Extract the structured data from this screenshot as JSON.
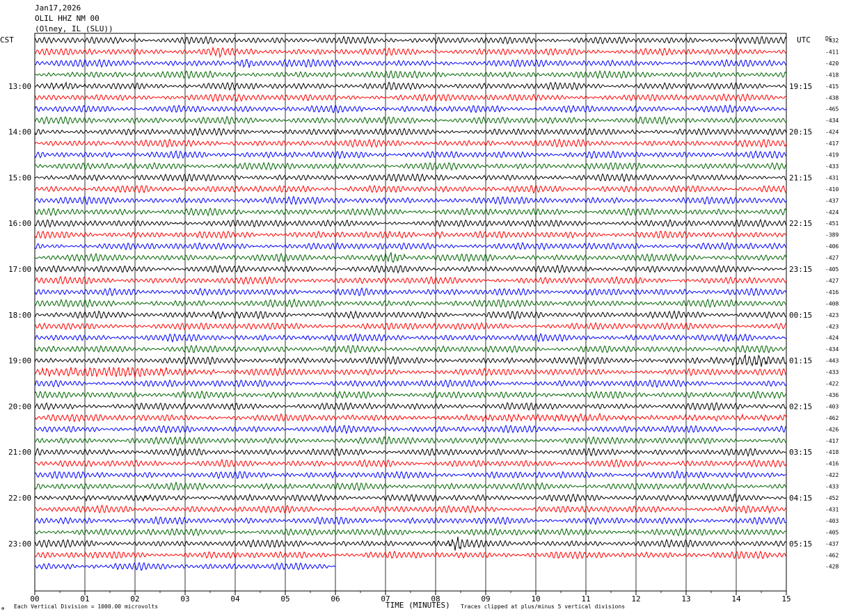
{
  "header": {
    "date": "Jan17,2026",
    "station": "OLIL HHZ NM 00",
    "location": "(Olney, IL (SLU))"
  },
  "left_zone_label": "CST",
  "right_zone_label": "UTC",
  "dc_label": "DC",
  "footer": {
    "scale_note": "Each Vertical Division = 1000.00 microvolts",
    "xlabel": "TIME (MINUTES)",
    "clip_note": "Traces clipped at plus/minus 5 vertical divisions",
    "corner_mark": "✠"
  },
  "chart_data": {
    "type": "line",
    "x_ticks": [
      "00",
      "01",
      "02",
      "03",
      "04",
      "05",
      "06",
      "07",
      "08",
      "09",
      "10",
      "11",
      "12",
      "13",
      "14",
      "15"
    ],
    "xlim": [
      0,
      15
    ],
    "grid": true,
    "trace_colors": [
      "#000000",
      "#ff0000",
      "#0000ff",
      "#006400"
    ],
    "rows": [
      {
        "dc": "-432",
        "local": "",
        "utc": ""
      },
      {
        "dc": "-411",
        "local": "",
        "utc": ""
      },
      {
        "dc": "-420",
        "local": "",
        "utc": ""
      },
      {
        "dc": "-418",
        "local": "",
        "utc": ""
      },
      {
        "dc": "-415",
        "local": "13:00",
        "utc": "19:15"
      },
      {
        "dc": "-438",
        "local": "",
        "utc": ""
      },
      {
        "dc": "-465",
        "local": "",
        "utc": ""
      },
      {
        "dc": "-434",
        "local": "",
        "utc": ""
      },
      {
        "dc": "-424",
        "local": "14:00",
        "utc": "20:15"
      },
      {
        "dc": "-417",
        "local": "",
        "utc": ""
      },
      {
        "dc": "-419",
        "local": "",
        "utc": ""
      },
      {
        "dc": "-433",
        "local": "",
        "utc": ""
      },
      {
        "dc": "-431",
        "local": "15:00",
        "utc": "21:15"
      },
      {
        "dc": "-410",
        "local": "",
        "utc": ""
      },
      {
        "dc": "-437",
        "local": "",
        "utc": ""
      },
      {
        "dc": "-424",
        "local": "",
        "utc": ""
      },
      {
        "dc": "-451",
        "local": "16:00",
        "utc": "22:15"
      },
      {
        "dc": "-389",
        "local": "",
        "utc": ""
      },
      {
        "dc": "-406",
        "local": "",
        "utc": ""
      },
      {
        "dc": "-427",
        "local": "",
        "utc": ""
      },
      {
        "dc": "-405",
        "local": "17:00",
        "utc": "23:15"
      },
      {
        "dc": "-427",
        "local": "",
        "utc": ""
      },
      {
        "dc": "-416",
        "local": "",
        "utc": ""
      },
      {
        "dc": "-408",
        "local": "",
        "utc": ""
      },
      {
        "dc": "-423",
        "local": "18:00",
        "utc": "00:15"
      },
      {
        "dc": "-423",
        "local": "",
        "utc": ""
      },
      {
        "dc": "-424",
        "local": "",
        "utc": ""
      },
      {
        "dc": "-434",
        "local": "",
        "utc": ""
      },
      {
        "dc": "-443",
        "local": "19:00",
        "utc": "01:15"
      },
      {
        "dc": "-433",
        "local": "",
        "utc": ""
      },
      {
        "dc": "-422",
        "local": "",
        "utc": ""
      },
      {
        "dc": "-436",
        "local": "",
        "utc": ""
      },
      {
        "dc": "-403",
        "local": "20:00",
        "utc": "02:15"
      },
      {
        "dc": "-462",
        "local": "",
        "utc": ""
      },
      {
        "dc": "-426",
        "local": "",
        "utc": ""
      },
      {
        "dc": "-417",
        "local": "",
        "utc": ""
      },
      {
        "dc": "-418",
        "local": "21:00",
        "utc": "03:15"
      },
      {
        "dc": "-416",
        "local": "",
        "utc": ""
      },
      {
        "dc": "-422",
        "local": "",
        "utc": ""
      },
      {
        "dc": "-433",
        "local": "",
        "utc": ""
      },
      {
        "dc": "-452",
        "local": "22:00",
        "utc": "04:15"
      },
      {
        "dc": "-431",
        "local": "",
        "utc": ""
      },
      {
        "dc": "-403",
        "local": "",
        "utc": ""
      },
      {
        "dc": "-405",
        "local": "",
        "utc": ""
      },
      {
        "dc": "-437",
        "local": "23:00",
        "utc": "05:15"
      },
      {
        "dc": "-462",
        "local": "",
        "utc": ""
      },
      {
        "dc": "-428",
        "local": "",
        "utc": ""
      }
    ],
    "last_row_end_minute": 6.0,
    "events": [
      {
        "row": 1,
        "start": 3.4,
        "end": 3.9,
        "gain": 2.2
      },
      {
        "row": 2,
        "start": 4.0,
        "end": 4.5,
        "gain": 2.6
      },
      {
        "row": 4,
        "start": 0.0,
        "end": 1.1,
        "gain": 1.5
      },
      {
        "row": 17,
        "start": 7.1,
        "end": 7.5,
        "gain": 1.6
      },
      {
        "row": 17,
        "start": 7.9,
        "end": 8.3,
        "gain": 2.2
      },
      {
        "row": 19,
        "start": 6.8,
        "end": 7.4,
        "gain": 2.8
      },
      {
        "row": 24,
        "start": 3.5,
        "end": 3.9,
        "gain": 2.0
      },
      {
        "row": 26,
        "start": 5.3,
        "end": 5.6,
        "gain": 1.6
      },
      {
        "row": 28,
        "start": 13.5,
        "end": 15.0,
        "gain": 2.6
      },
      {
        "row": 29,
        "start": 0.0,
        "end": 3.6,
        "gain": 2.4
      },
      {
        "row": 32,
        "start": 3.8,
        "end": 4.3,
        "gain": 2.0
      },
      {
        "row": 33,
        "start": 6.0,
        "end": 15.0,
        "gain": 1.6
      },
      {
        "row": 40,
        "start": 0.0,
        "end": 3.0,
        "gain": 1.4
      },
      {
        "row": 44,
        "start": 8.2,
        "end": 8.8,
        "gain": 2.6
      }
    ]
  }
}
